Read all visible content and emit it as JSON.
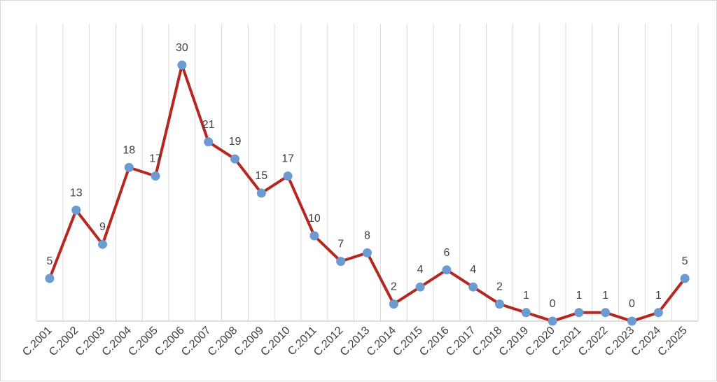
{
  "chart_data": {
    "type": "line",
    "title": "",
    "xlabel": "",
    "ylabel": "",
    "ylim": [
      0,
      30
    ],
    "grid": "vertical",
    "legend": "none",
    "categories": [
      "C.2001",
      "C.2002",
      "C.2003",
      "C.2004",
      "C.2005",
      "C.2006",
      "C.2007",
      "C.2008",
      "C.2009",
      "C.2010",
      "C.2011",
      "C.2012",
      "C.2013",
      "C.2014",
      "C.2015",
      "C.2016",
      "C.2017",
      "C.2018",
      "C.2019",
      "C.2020",
      "C.2021",
      "C.2022",
      "C.2023",
      "C.2024",
      "C.2025"
    ],
    "series": [
      {
        "values": [
          5,
          13,
          9,
          18,
          17,
          30,
          21,
          19,
          15,
          17,
          10,
          7,
          8,
          2,
          4,
          6,
          4,
          2,
          1,
          0,
          1,
          1,
          0,
          1,
          5
        ],
        "line_color": "#b5271f",
        "marker_color": "#6b9bd1"
      }
    ],
    "data_labels": [
      "5",
      "13",
      "9",
      "18",
      "17",
      "30",
      "21",
      "19",
      "15",
      "17",
      "10",
      "7",
      "8",
      "2",
      "4",
      "6",
      "4",
      "2",
      "1",
      "0",
      "1",
      "1",
      "0",
      "1",
      "5"
    ],
    "gridline_color": "#d9d9d9",
    "axis_color": "#bfbfbf"
  }
}
